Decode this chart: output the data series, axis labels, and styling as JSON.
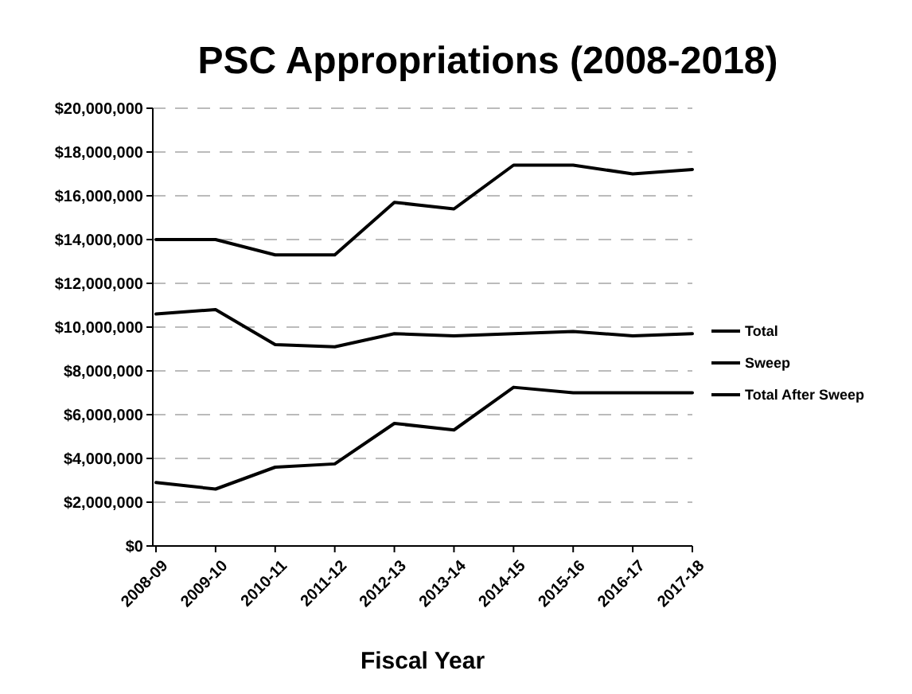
{
  "chart_data": {
    "type": "line",
    "title": "PSC Appropriations (2008-2018)",
    "xlabel": "Fiscal Year",
    "categories": [
      "2008-09",
      "2009-10",
      "2010-11",
      "2011-12",
      "2012-13",
      "2013-14",
      "2014-15",
      "2015-16",
      "2016-17",
      "2017-18"
    ],
    "series": [
      {
        "name": "Total",
        "color": "#000000",
        "values": [
          14000000,
          14000000,
          13300000,
          13300000,
          15700000,
          15400000,
          17400000,
          17400000,
          17000000,
          17200000
        ]
      },
      {
        "name": "Sweep",
        "color": "#000000",
        "values": [
          10600000,
          10800000,
          9200000,
          9100000,
          9700000,
          9600000,
          9700000,
          9800000,
          9600000,
          9700000
        ]
      },
      {
        "name": "Total After Sweep",
        "color": "#000000",
        "values": [
          2900000,
          2600000,
          3600000,
          3750000,
          5600000,
          5300000,
          7250000,
          7000000,
          7000000,
          7000000
        ]
      }
    ],
    "ylim": [
      0,
      20000000
    ],
    "yticks": [
      {
        "value": 0,
        "label": "$0"
      },
      {
        "value": 2000000,
        "label": "$2,000,000"
      },
      {
        "value": 4000000,
        "label": "$4,000,000"
      },
      {
        "value": 6000000,
        "label": "$6,000,000"
      },
      {
        "value": 8000000,
        "label": "$8,000,000"
      },
      {
        "value": 10000000,
        "label": "$10,000,000"
      },
      {
        "value": 12000000,
        "label": "$12,000,000"
      },
      {
        "value": 14000000,
        "label": "$14,000,000"
      },
      {
        "value": 16000000,
        "label": "$16,000,000"
      },
      {
        "value": 18000000,
        "label": "$18,000,000"
      },
      {
        "value": 20000000,
        "label": "$20,000,000"
      }
    ],
    "grid": "y",
    "legend": "right",
    "marker": "none",
    "line_style": "solid"
  }
}
